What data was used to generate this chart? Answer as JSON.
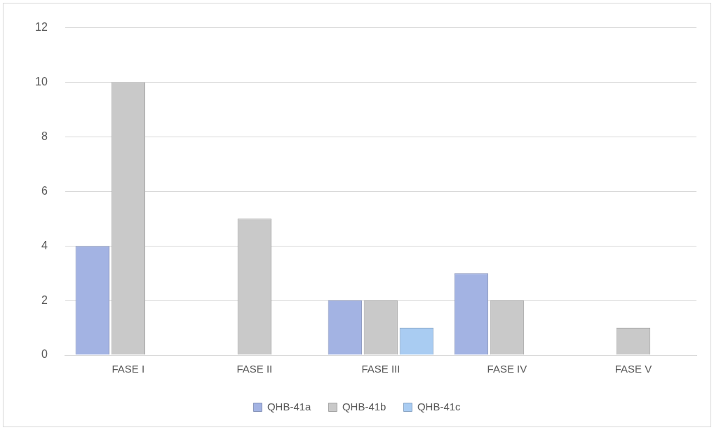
{
  "chart_data": {
    "type": "bar",
    "categories": [
      "FASE I",
      "FASE II",
      "FASE III",
      "FASE IV",
      "FASE V"
    ],
    "series": [
      {
        "name": "QHB-41a",
        "color": "#a3b3e3",
        "values": [
          4,
          null,
          2,
          3,
          null
        ]
      },
      {
        "name": "QHB-41b",
        "color": "#c9c9c9",
        "values": [
          10,
          5,
          2,
          2,
          1
        ]
      },
      {
        "name": "QHB-41c",
        "color": "#a9ccf2",
        "values": [
          null,
          null,
          1,
          null,
          null
        ]
      }
    ],
    "ylim": [
      0,
      12
    ],
    "yticks": [
      0,
      2,
      4,
      6,
      8,
      10,
      12
    ],
    "grid": "y",
    "legend": "bottom"
  }
}
